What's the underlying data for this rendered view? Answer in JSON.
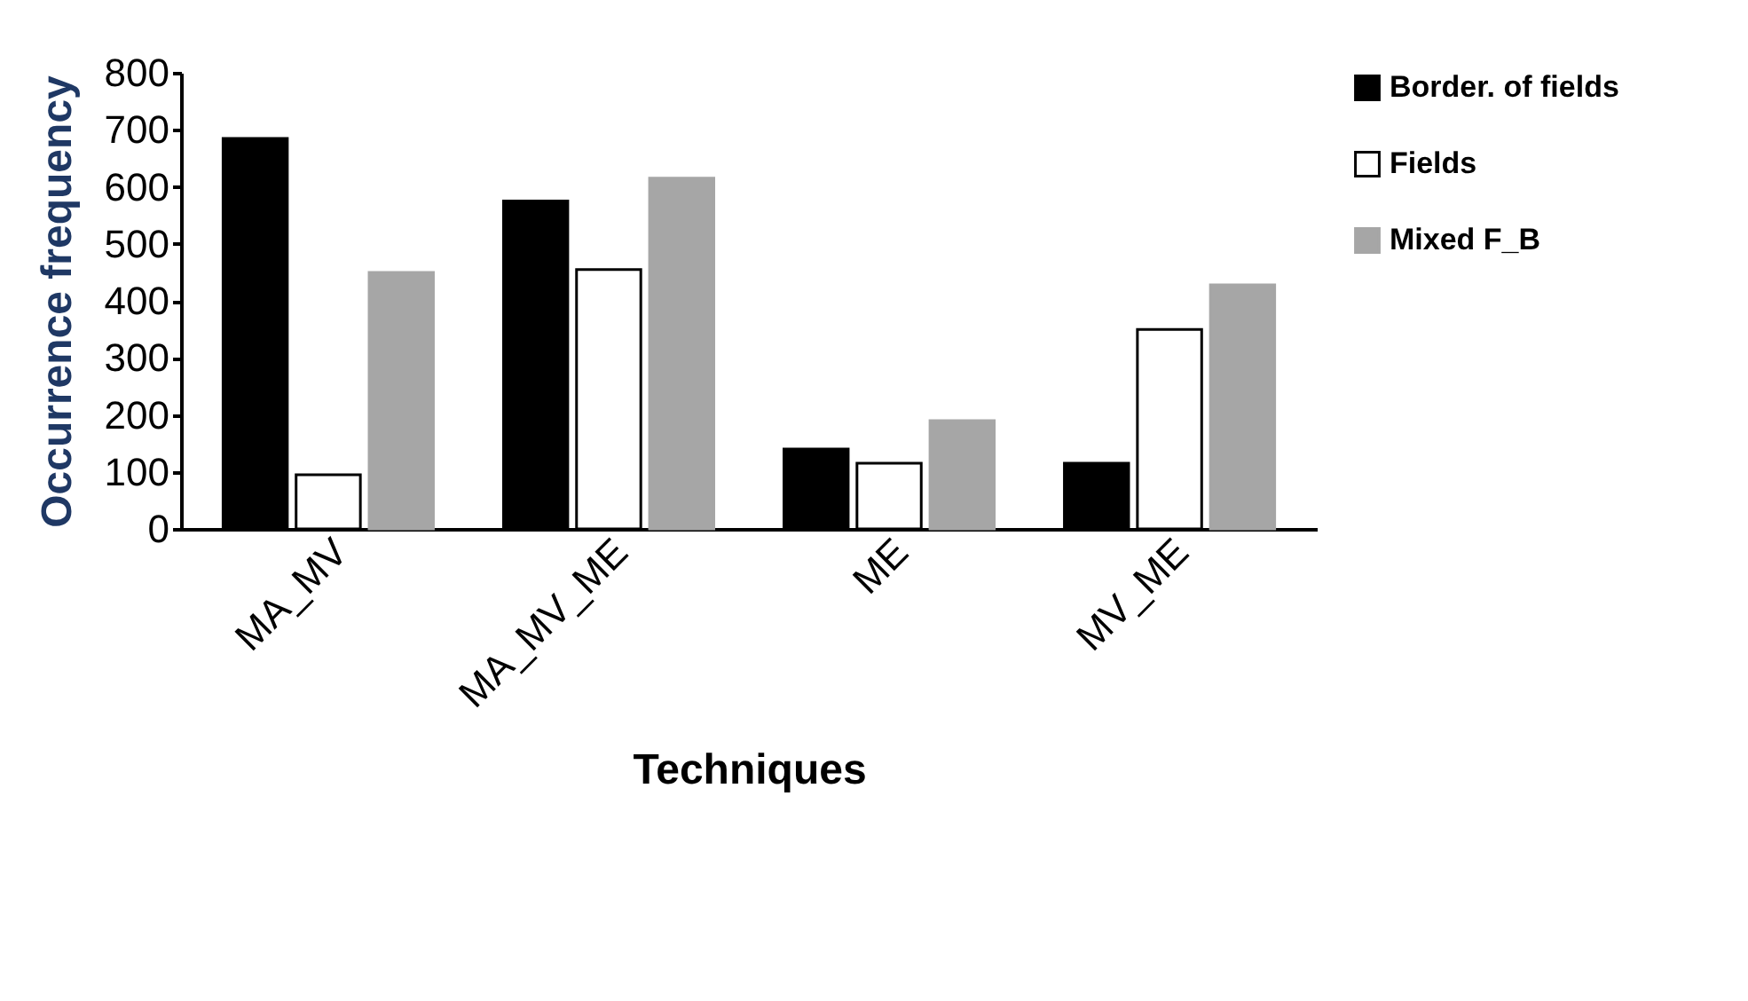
{
  "chart_data": {
    "type": "bar",
    "xlabel": "Techniques",
    "ylabel": "Occurrence frequency",
    "categories": [
      "MA_MV",
      "MA_MV_ME",
      "ME",
      "MV_ME"
    ],
    "series": [
      {
        "name": "Border. of fields",
        "color": "#000000",
        "values": [
          685,
          575,
          140,
          115
        ]
      },
      {
        "name": "Fields",
        "color": "#ffffff",
        "values": [
          95,
          455,
          115,
          350
        ]
      },
      {
        "name": "Mixed F_B",
        "color": "#a6a6a6",
        "values": [
          450,
          615,
          190,
          428
        ]
      }
    ],
    "ylim": [
      0,
      800
    ],
    "yticks": [
      0,
      100,
      200,
      300,
      400,
      500,
      600,
      700,
      800
    ],
    "grid": false,
    "legend": "right"
  }
}
